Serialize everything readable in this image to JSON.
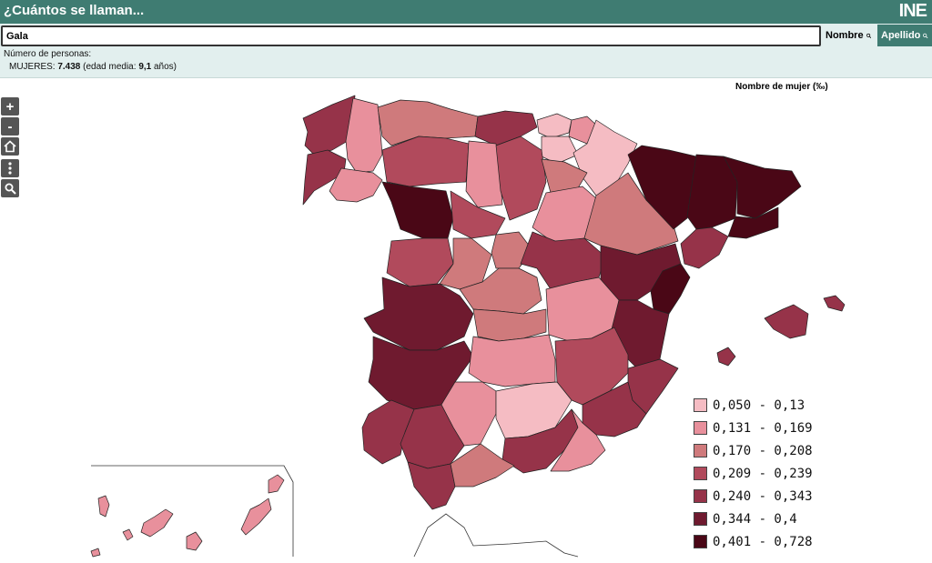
{
  "header": {
    "title": "¿Cuántos se llaman...",
    "logo_text": "INE"
  },
  "search": {
    "value": "Gala",
    "nombre_label": "Nombre",
    "apellido_label": "Apellido"
  },
  "result": {
    "count_label": "Número de personas:",
    "gender_label": "MUJERES:",
    "count": "7.438",
    "avg_prefix": "(edad media:",
    "avg_value": "9,1",
    "avg_suffix": "años)"
  },
  "map": {
    "title": "Nombre de mujer (‰)",
    "zoom_in_label": "+",
    "zoom_out_label": "-",
    "legend": [
      {
        "label": "0,050 - 0,13",
        "color": "#f5bcc3"
      },
      {
        "label": "0,131 - 0,169",
        "color": "#e8909c"
      },
      {
        "label": "0,170 - 0,208",
        "color": "#cf7a7c"
      },
      {
        "label": "0,209 - 0,239",
        "color": "#b14a5c"
      },
      {
        "label": "0,240 - 0,343",
        "color": "#963349"
      },
      {
        "label": "0,344 - 0,4",
        "color": "#6f1a2f"
      },
      {
        "label": "0,401 - 0,728",
        "color": "#4a0716"
      }
    ],
    "icons": {
      "zoom_in": "plus-icon",
      "zoom_out": "minus-icon",
      "home": "home-icon",
      "more": "more-vertical-icon",
      "search": "search-icon"
    }
  }
}
